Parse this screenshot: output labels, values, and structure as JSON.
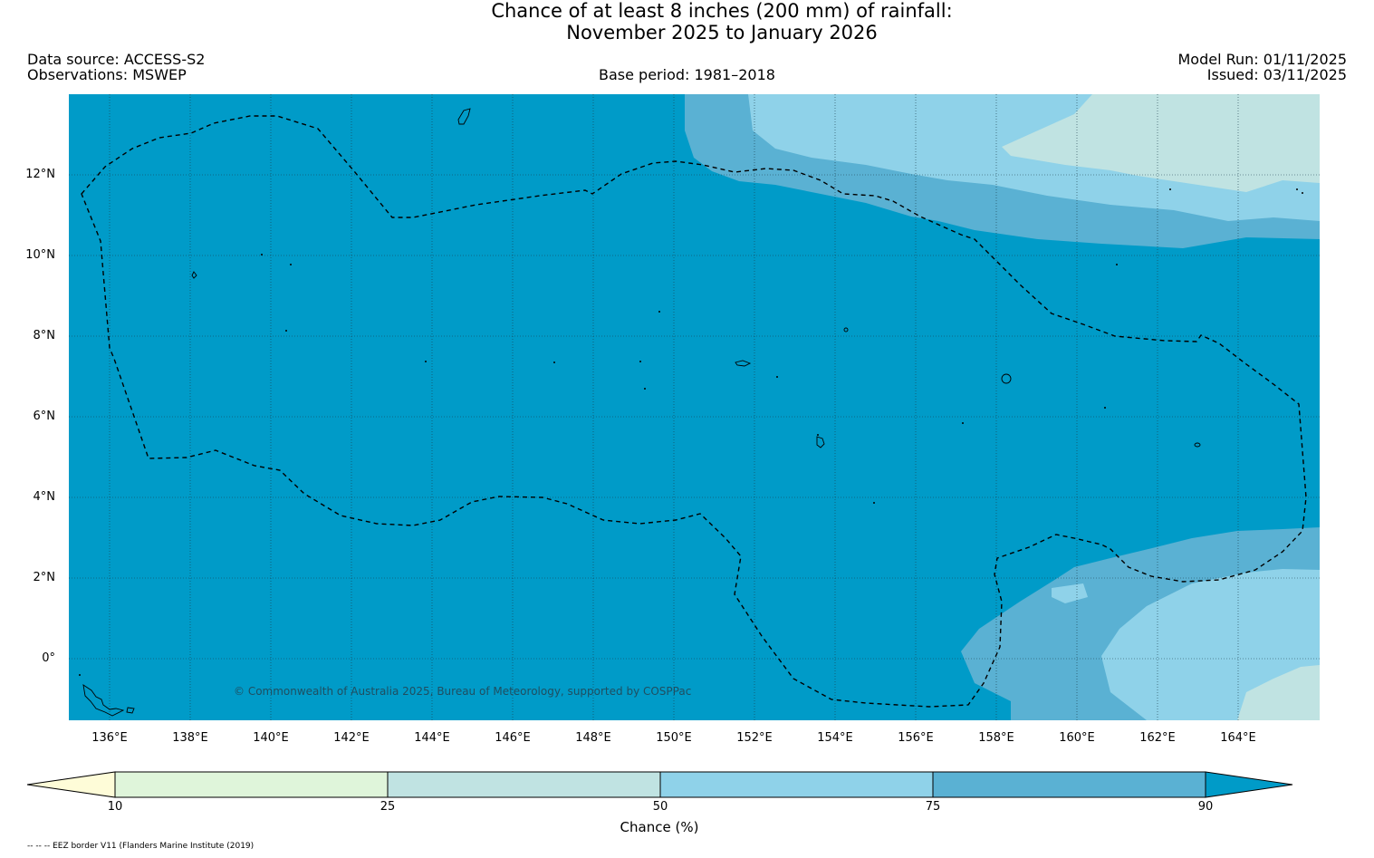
{
  "title": {
    "line1": "Chance of at least 8 inches (200  mm) of rainfall:",
    "line2": "November 2025 to January 2026"
  },
  "header": {
    "data_source": "Data source: ACCESS-S2",
    "observations": "Observations: MSWEP",
    "base_period": "Base period: 1981–2018",
    "model_run": "Model Run: 01/11/2025",
    "issued": "Issued: 03/11/2025"
  },
  "map": {
    "lat_labels": [
      "12°N",
      "10°N",
      "8°N",
      "6°N",
      "4°N",
      "2°N",
      "0°"
    ],
    "lon_labels": [
      "136°E",
      "138°E",
      "140°E",
      "142°E",
      "144°E",
      "146°E",
      "148°E",
      "150°E",
      "152°E",
      "154°E",
      "156°E",
      "158°E",
      "160°E",
      "162°E",
      "164°E"
    ],
    "copyright": "© Commonwealth of Australia 2025, Bureau of Meteorology, supported by COSPPac",
    "colors": {
      "c_90": "#009bc8",
      "c_75": "#5ab1d3",
      "c_50": "#8fd2e9",
      "c_25": "#c0e3e2",
      "c_10": "#dff5da",
      "c_lt10": "#fefcd8"
    }
  },
  "colorbar": {
    "ticks": [
      "10",
      "25",
      "50",
      "75",
      "90"
    ],
    "label": "Chance (%)"
  },
  "footnote": "-- -- -- EEZ border V11 (Flanders Marine Institute (2019)"
}
